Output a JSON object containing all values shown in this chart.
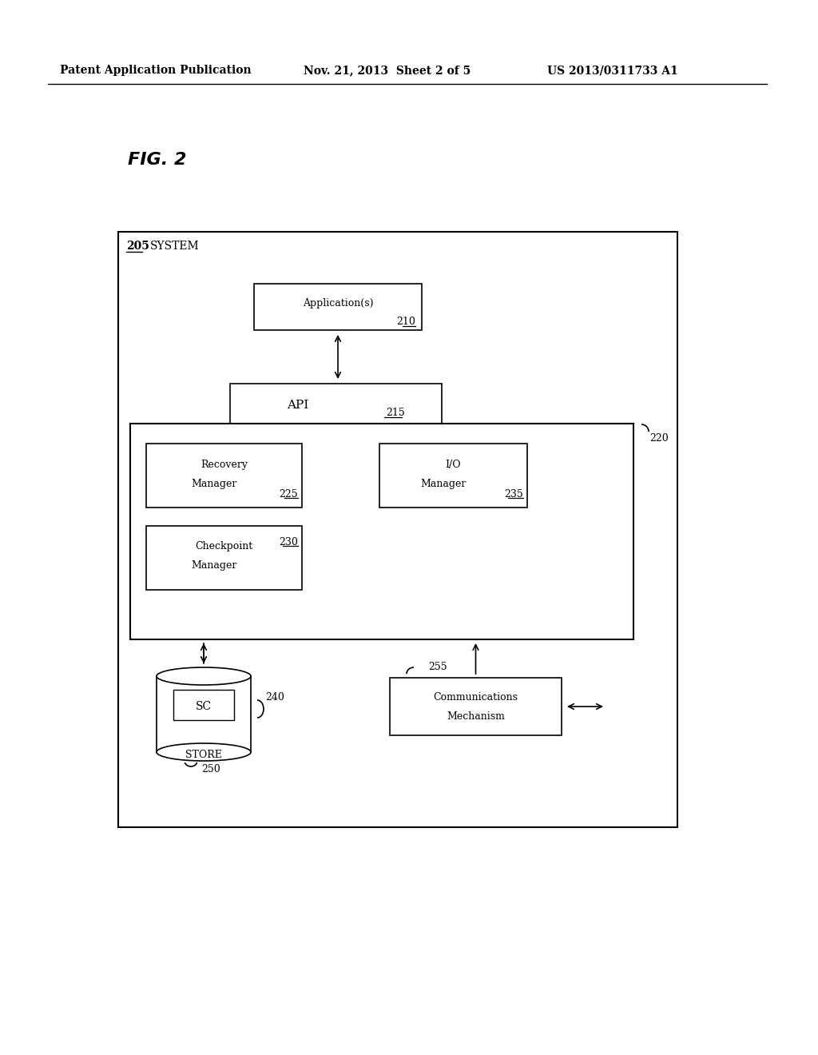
{
  "background_color": "#ffffff",
  "header_left": "Patent Application Publication",
  "header_mid": "Nov. 21, 2013  Sheet 2 of 5",
  "header_right": "US 2013/0311733 A1",
  "fig_label": "FIG. 2",
  "outer_box_label": "205",
  "outer_box_sublabel": "System",
  "app_box_label": "Application(s)",
  "app_box_num": "210",
  "api_box_label": "API",
  "api_box_num": "215",
  "inner_box_num": "220",
  "recovery_label1": "Recovery",
  "recovery_label2": "Manager",
  "recovery_num": "225",
  "io_label1": "I/O",
  "io_label2": "Manager",
  "io_num": "235",
  "checkpoint_label1": "Checkpoint",
  "checkpoint_label2": "Manager",
  "checkpoint_num": "230",
  "sc_label": "SC",
  "store_label": "Store",
  "store_num": "240",
  "store_bottom_num": "250",
  "comm_label1": "Communications",
  "comm_label2": "Mechanism",
  "comm_num": "255"
}
